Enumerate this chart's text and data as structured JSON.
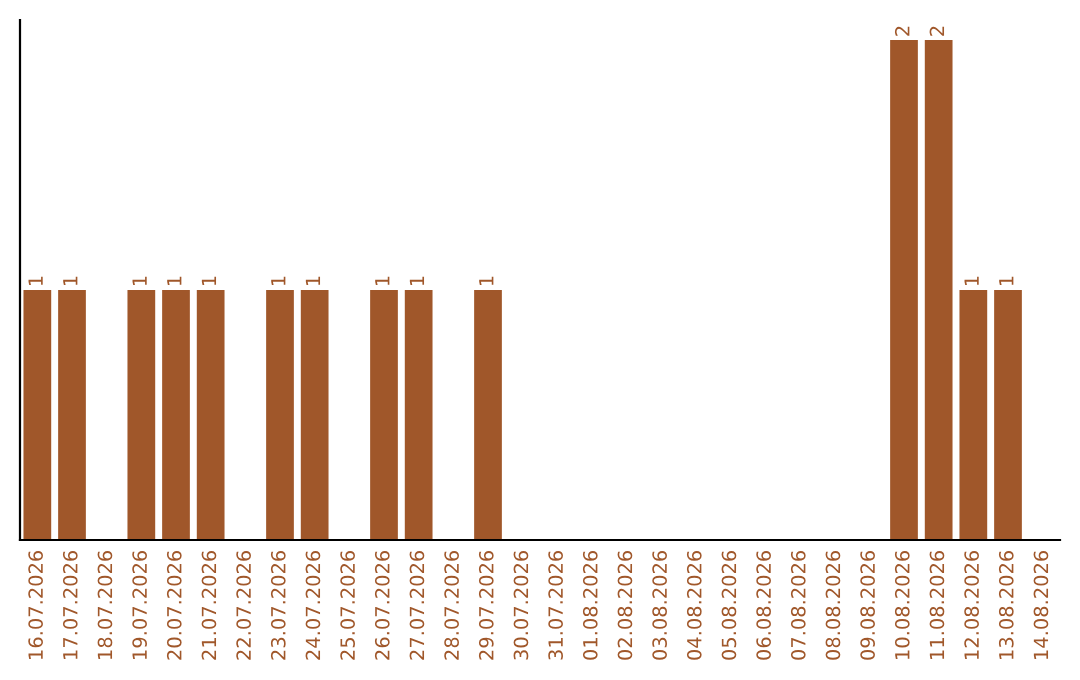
{
  "chart_data": {
    "type": "bar",
    "categories": [
      "16.07.2026",
      "17.07.2026",
      "18.07.2026",
      "19.07.2026",
      "20.07.2026",
      "21.07.2026",
      "22.07.2026",
      "23.07.2026",
      "24.07.2026",
      "25.07.2026",
      "26.07.2026",
      "27.07.2026",
      "28.07.2026",
      "29.07.2026",
      "30.07.2026",
      "31.07.2026",
      "01.08.2026",
      "02.08.2026",
      "03.08.2026",
      "04.08.2026",
      "05.08.2026",
      "06.08.2026",
      "07.08.2026",
      "08.08.2026",
      "09.08.2026",
      "10.08.2026",
      "11.08.2026",
      "12.08.2026",
      "13.08.2026",
      "14.08.2026"
    ],
    "values": [
      1,
      1,
      0,
      1,
      1,
      1,
      0,
      1,
      1,
      0,
      1,
      1,
      0,
      1,
      0,
      0,
      0,
      0,
      0,
      0,
      0,
      0,
      0,
      0,
      0,
      2,
      2,
      1,
      1,
      0
    ],
    "value_labels": [
      "1",
      "1",
      null,
      "1",
      "1",
      "1",
      null,
      "1",
      "1",
      null,
      "1",
      "1",
      null,
      "1",
      null,
      null,
      null,
      null,
      null,
      null,
      null,
      null,
      null,
      null,
      null,
      "2",
      "2",
      "1",
      "1",
      null
    ],
    "color": "#a0572a",
    "tick_labels": "x",
    "grid": false,
    "legend": false
  }
}
